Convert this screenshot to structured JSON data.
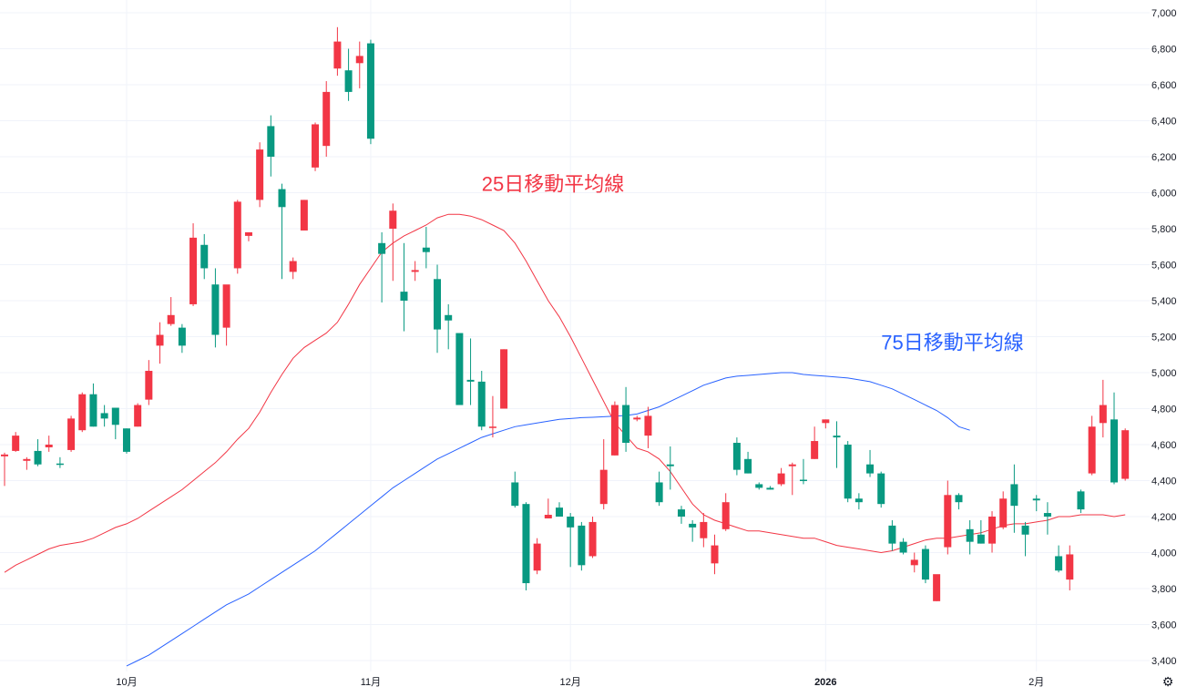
{
  "chart_data": {
    "type": "candlestick",
    "title": "",
    "y_axis": {
      "position": "right",
      "min": 3400,
      "max": 7000,
      "ticks": [
        "3,400",
        "3,600",
        "3,800",
        "4,000",
        "4,200",
        "4,400",
        "4,600",
        "4,800",
        "5,000",
        "5,200",
        "5,400",
        "5,600",
        "5,800",
        "6,000",
        "6,200",
        "6,400",
        "6,600",
        "6,800",
        "7,000"
      ],
      "tick_values": [
        3400,
        3600,
        3800,
        4000,
        4200,
        4400,
        4600,
        4800,
        5000,
        5200,
        5400,
        5600,
        5800,
        6000,
        6200,
        6400,
        6600,
        6800,
        7000
      ]
    },
    "x_axis": {
      "ticks": [
        {
          "label": "10月",
          "index": 11,
          "bold": false
        },
        {
          "label": "11月",
          "index": 33,
          "bold": false
        },
        {
          "label": "12月",
          "index": 51,
          "bold": false
        },
        {
          "label": "2026",
          "index": 74,
          "bold": true
        },
        {
          "label": "2月",
          "index": 93,
          "bold": false
        }
      ]
    },
    "grid": true,
    "colors": {
      "up": "#f23645",
      "down": "#089981",
      "ma25": "#f23645",
      "ma75": "#2962ff"
    },
    "candles": [
      [
        4535,
        4555,
        4370,
        4545
      ],
      [
        4565,
        4670,
        4560,
        4650
      ],
      [
        4510,
        4530,
        4460,
        4520
      ],
      [
        4565,
        4630,
        4480,
        4490
      ],
      [
        4585,
        4650,
        4560,
        4600
      ],
      [
        4495,
        4530,
        4470,
        4490
      ],
      [
        4570,
        4760,
        4560,
        4745
      ],
      [
        4680,
        4890,
        4670,
        4880
      ],
      [
        4880,
        4940,
        4700,
        4700
      ],
      [
        4775,
        4820,
        4700,
        4745
      ],
      [
        4805,
        4800,
        4630,
        4710
      ],
      [
        4690,
        4690,
        4550,
        4560
      ],
      [
        4700,
        4830,
        4700,
        4820
      ],
      [
        4850,
        5070,
        4820,
        5010
      ],
      [
        5150,
        5280,
        5050,
        5210
      ],
      [
        5270,
        5420,
        5260,
        5320
      ],
      [
        5250,
        5270,
        5110,
        5150
      ],
      [
        5380,
        5830,
        5370,
        5750
      ],
      [
        5710,
        5770,
        5520,
        5580
      ],
      [
        5490,
        5580,
        5140,
        5210
      ],
      [
        5250,
        5470,
        5150,
        5490
      ],
      [
        5580,
        5960,
        5550,
        5950
      ],
      [
        5760,
        5780,
        5730,
        5780
      ],
      [
        5960,
        6280,
        5920,
        6240
      ],
      [
        6370,
        6430,
        6090,
        6200
      ],
      [
        6020,
        6050,
        5520,
        5920
      ],
      [
        5560,
        5640,
        5520,
        5620
      ],
      [
        5790,
        5960,
        5790,
        5960
      ],
      [
        6140,
        6390,
        6120,
        6380
      ],
      [
        6260,
        6620,
        6200,
        6560
      ],
      [
        6690,
        6920,
        6650,
        6840
      ],
      [
        6680,
        6800,
        6510,
        6560
      ],
      [
        6720,
        6840,
        6580,
        6760
      ],
      [
        6830,
        6850,
        6270,
        6300
      ],
      [
        5720,
        5780,
        5390,
        5660
      ],
      [
        5800,
        5940,
        5510,
        5900
      ],
      [
        5450,
        5720,
        5230,
        5400
      ],
      [
        5560,
        5620,
        5510,
        5570
      ],
      [
        5695,
        5810,
        5580,
        5670
      ],
      [
        5520,
        5600,
        5110,
        5240
      ],
      [
        5320,
        5380,
        5130,
        5290
      ],
      [
        5220,
        5200,
        4830,
        4820
      ],
      [
        4960,
        5190,
        4820,
        4950
      ],
      [
        4950,
        5010,
        4680,
        4700
      ],
      [
        4700,
        4870,
        4640,
        4700
      ],
      [
        4800,
        5130,
        4800,
        5130
      ],
      [
        4390,
        4450,
        4250,
        4260
      ],
      [
        4270,
        4280,
        3790,
        3830
      ],
      [
        3900,
        4080,
        3880,
        4050
      ],
      [
        4190,
        4300,
        4190,
        4210
      ],
      [
        4250,
        4280,
        4200,
        4200
      ],
      [
        4200,
        4220,
        3920,
        4140
      ],
      [
        4150,
        4170,
        3900,
        3930
      ],
      [
        3980,
        4200,
        3970,
        4170
      ],
      [
        4270,
        4630,
        4240,
        4460
      ],
      [
        4540,
        4840,
        4540,
        4820
      ],
      [
        4820,
        4920,
        4560,
        4610
      ],
      [
        4740,
        4760,
        4730,
        4750
      ],
      [
        4650,
        4810,
        4580,
        4760
      ],
      [
        4390,
        4450,
        4260,
        4280
      ],
      [
        4490,
        4590,
        4350,
        4480
      ],
      [
        4240,
        4260,
        4160,
        4200
      ],
      [
        4160,
        4180,
        4060,
        4140
      ],
      [
        4080,
        4220,
        4030,
        4170
      ],
      [
        3940,
        4100,
        3880,
        4040
      ],
      [
        4130,
        4330,
        4120,
        4280
      ],
      [
        4610,
        4640,
        4430,
        4460
      ],
      [
        4520,
        4560,
        4440,
        4440
      ],
      [
        4380,
        4390,
        4350,
        4360
      ],
      [
        4360,
        4370,
        4350,
        4350
      ],
      [
        4380,
        4470,
        4370,
        4440
      ],
      [
        4480,
        4500,
        4320,
        4490
      ],
      [
        4405,
        4520,
        4380,
        4400
      ],
      [
        4520,
        4700,
        4520,
        4620
      ],
      [
        4720,
        4740,
        4690,
        4740
      ],
      [
        4650,
        4730,
        4470,
        4640
      ],
      [
        4600,
        4620,
        4280,
        4300
      ],
      [
        4300,
        4330,
        4240,
        4280
      ],
      [
        4490,
        4570,
        4420,
        4440
      ],
      [
        4440,
        4450,
        4250,
        4270
      ],
      [
        4150,
        4180,
        4010,
        4050
      ],
      [
        4060,
        4080,
        3990,
        4000
      ],
      [
        3930,
        4000,
        3890,
        3960
      ],
      [
        4020,
        4040,
        3830,
        3850
      ],
      [
        3730,
        3870,
        3730,
        3880
      ],
      [
        4030,
        4400,
        3990,
        4320
      ],
      [
        4320,
        4330,
        4240,
        4280
      ],
      [
        4130,
        4180,
        3990,
        4060
      ],
      [
        4100,
        4180,
        4050,
        4050
      ],
      [
        4050,
        4230,
        4000,
        4200
      ],
      [
        4140,
        4340,
        4130,
        4300
      ],
      [
        4380,
        4490,
        4110,
        4260
      ],
      [
        4150,
        4170,
        3980,
        4100
      ],
      [
        4300,
        4320,
        4230,
        4290
      ],
      [
        4220,
        4280,
        4100,
        4200
      ],
      [
        3980,
        4040,
        3890,
        3900
      ],
      [
        3850,
        4040,
        3790,
        3990
      ],
      [
        4340,
        4350,
        4220,
        4240
      ],
      [
        4440,
        4760,
        4430,
        4700
      ],
      [
        4720,
        4960,
        4640,
        4820
      ],
      [
        4740,
        4890,
        4380,
        4390
      ],
      [
        4410,
        4690,
        4400,
        4680
      ]
    ],
    "ma25": [
      3890,
      3930,
      3960,
      3990,
      4020,
      4040,
      4050,
      4060,
      4080,
      4110,
      4140,
      4160,
      4190,
      4230,
      4270,
      4310,
      4350,
      4400,
      4450,
      4500,
      4560,
      4630,
      4690,
      4780,
      4890,
      4990,
      5080,
      5140,
      5180,
      5220,
      5280,
      5380,
      5490,
      5580,
      5670,
      5720,
      5760,
      5790,
      5820,
      5860,
      5880,
      5880,
      5870,
      5850,
      5820,
      5790,
      5720,
      5620,
      5510,
      5400,
      5310,
      5200,
      5080,
      4960,
      4840,
      4720,
      4650,
      4580,
      4560,
      4520,
      4450,
      4360,
      4270,
      4210,
      4180,
      4160,
      4140,
      4120,
      4120,
      4110,
      4100,
      4090,
      4080,
      4080,
      4060,
      4040,
      4030,
      4020,
      4010,
      4000,
      4010,
      4030,
      4050,
      4070,
      4080,
      4080,
      4090,
      4100,
      4110,
      4130,
      4150,
      4160,
      4160,
      4170,
      4180,
      4200,
      4200,
      4210,
      4210,
      4210,
      4200,
      4210
    ],
    "ma75": [
      3370,
      3400,
      3430,
      3470,
      3510,
      3550,
      3590,
      3630,
      3670,
      3710,
      3740,
      3770,
      3810,
      3850,
      3890,
      3930,
      3970,
      4010,
      4060,
      4110,
      4160,
      4210,
      4260,
      4310,
      4360,
      4400,
      4440,
      4480,
      4520,
      4550,
      4580,
      4610,
      4640,
      4660,
      4680,
      4700,
      4710,
      4720,
      4730,
      4740,
      4745,
      4750,
      4752,
      4755,
      4758,
      4762,
      4770,
      4790,
      4810,
      4840,
      4870,
      4900,
      4930,
      4950,
      4970,
      4980,
      4985,
      4990,
      4995,
      5000,
      5000,
      4990,
      4985,
      4980,
      4975,
      4970,
      4960,
      4950,
      4930,
      4910,
      4880,
      4850,
      4820,
      4790,
      4750,
      4700,
      4680
    ],
    "ma75_start_index": 11,
    "annotations": [
      {
        "text": "25日移動平均線",
        "color": "#f23645",
        "index": 43,
        "value": 6010
      },
      {
        "text": "75日移動平均線",
        "color": "#2962ff",
        "index": 79,
        "value": 5130
      }
    ]
  },
  "icons": {
    "settings": "gear-icon"
  }
}
